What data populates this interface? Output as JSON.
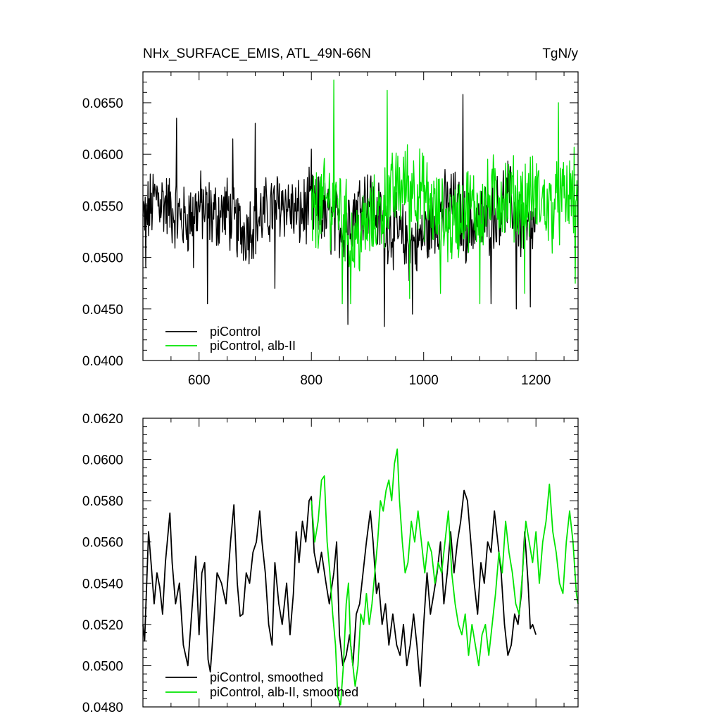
{
  "title": "NHx_SURFACE_EMIS, ATL_49N-66N",
  "units": "TgN/y",
  "colors": {
    "piControl": "#000000",
    "alb_II": "#00e400"
  },
  "chart_data": [
    {
      "type": "line",
      "xlim": [
        500,
        1275
      ],
      "ylim": [
        0.04,
        0.068
      ],
      "x_ticks": [
        600,
        800,
        1000,
        1200
      ],
      "x_tick_labels": [
        "600",
        "800",
        "1000",
        "1200"
      ],
      "y_ticks": [
        0.04,
        0.045,
        0.05,
        0.055,
        0.06,
        0.065
      ],
      "y_tick_labels": [
        "0.0400",
        "0.0450",
        "0.0500",
        "0.0550",
        "0.0600",
        "0.0650"
      ],
      "legend_position": "lower-left",
      "series": [
        {
          "name": "piControl",
          "color": "#000000",
          "x_start": 500,
          "x_end": 1200,
          "step": 25,
          "values": [
            0.0535,
            0.056,
            0.0545,
            0.0535,
            0.055,
            0.054,
            0.0545,
            0.0525,
            0.0535,
            0.0545,
            0.0555,
            0.054,
            0.055,
            0.054,
            0.053,
            0.0545,
            0.056,
            0.0535,
            0.0525,
            0.051,
            0.052,
            0.054,
            0.0555,
            0.053,
            0.0535,
            0.054,
            0.056,
            0.053,
            0.0525
          ],
          "amplitude": 0.003,
          "spikes": [
            [
              505,
              0.049
            ],
            [
              560,
              0.0635
            ],
            [
              590,
              0.049
            ],
            [
              615,
              0.0455
            ],
            [
              660,
              0.0615
            ],
            [
              700,
              0.063
            ],
            [
              735,
              0.047
            ],
            [
              800,
              0.0605
            ],
            [
              865,
              0.0435
            ],
            [
              930,
              0.0433
            ],
            [
              980,
              0.0445
            ],
            [
              1070,
              0.0658
            ],
            [
              1120,
              0.0455
            ],
            [
              1165,
              0.045
            ],
            [
              1190,
              0.0452
            ]
          ]
        },
        {
          "name": "piControl, alb-II",
          "color": "#00e400",
          "x_start": 800,
          "x_end": 1275,
          "step": 25,
          "values": [
            0.054,
            0.0555,
            0.055,
            0.0515,
            0.053,
            0.0545,
            0.0565,
            0.0575,
            0.056,
            0.054,
            0.053,
            0.055,
            0.0545,
            0.056,
            0.056,
            0.0555,
            0.056,
            0.0545,
            0.0555,
            0.0565
          ],
          "amplitude": 0.0035,
          "spikes": [
            [
              840,
              0.0672
            ],
            [
              855,
              0.0455
            ],
            [
              870,
              0.0455
            ],
            [
              935,
              0.0662
            ],
            [
              975,
              0.046
            ],
            [
              1030,
              0.0465
            ],
            [
              1100,
              0.0455
            ],
            [
              1180,
              0.0465
            ],
            [
              1240,
              0.065
            ],
            [
              1270,
              0.0475
            ]
          ]
        }
      ]
    },
    {
      "type": "line",
      "xlim": [
        500,
        1275
      ],
      "ylim": [
        0.048,
        0.062
      ],
      "x_ticks": [
        600,
        800,
        1000,
        1200
      ],
      "x_tick_labels": [],
      "y_ticks": [
        0.048,
        0.05,
        0.052,
        0.054,
        0.056,
        0.058,
        0.06,
        0.062
      ],
      "y_tick_labels": [
        "0.0480",
        "0.0500",
        "0.0520",
        "0.0540",
        "0.0560",
        "0.0580",
        "0.0600",
        "0.0620"
      ],
      "legend_position": "lower-left",
      "series": [
        {
          "name": "piControl, smoothed",
          "color": "#000000",
          "points": [
            [
              500,
              0.052
            ],
            [
              503,
              0.0512
            ],
            [
              510,
              0.0565
            ],
            [
              515,
              0.0548
            ],
            [
              520,
              0.053
            ],
            [
              525,
              0.0545
            ],
            [
              530,
              0.0538
            ],
            [
              535,
              0.0525
            ],
            [
              540,
              0.055
            ],
            [
              548,
              0.0574
            ],
            [
              552,
              0.055
            ],
            [
              558,
              0.053
            ],
            [
              565,
              0.054
            ],
            [
              572,
              0.051
            ],
            [
              580,
              0.05
            ],
            [
              588,
              0.053
            ],
            [
              594,
              0.0553
            ],
            [
              600,
              0.0515
            ],
            [
              605,
              0.0545
            ],
            [
              610,
              0.055
            ],
            [
              616,
              0.0503
            ],
            [
              620,
              0.0497
            ],
            [
              626,
              0.052
            ],
            [
              632,
              0.0545
            ],
            [
              640,
              0.054
            ],
            [
              648,
              0.053
            ],
            [
              656,
              0.056
            ],
            [
              662,
              0.0578
            ],
            [
              668,
              0.054
            ],
            [
              673,
              0.0524
            ],
            [
              678,
              0.0525
            ],
            [
              684,
              0.0545
            ],
            [
              690,
              0.054
            ],
            [
              696,
              0.0555
            ],
            [
              702,
              0.056
            ],
            [
              708,
              0.0575
            ],
            [
              712,
              0.056
            ],
            [
              718,
              0.0545
            ],
            [
              724,
              0.052
            ],
            [
              730,
              0.051
            ],
            [
              735,
              0.055
            ],
            [
              742,
              0.053
            ],
            [
              748,
              0.052
            ],
            [
              756,
              0.054
            ],
            [
              762,
              0.0515
            ],
            [
              768,
              0.0535
            ],
            [
              773,
              0.0565
            ],
            [
              778,
              0.055
            ],
            [
              784,
              0.057
            ],
            [
              790,
              0.056
            ],
            [
              796,
              0.058
            ],
            [
              800,
              0.0582
            ],
            [
              805,
              0.0555
            ],
            [
              812,
              0.0545
            ],
            [
              818,
              0.0555
            ],
            [
              826,
              0.054
            ],
            [
              832,
              0.053
            ],
            [
              840,
              0.0545
            ],
            [
              845,
              0.056
            ],
            [
              850,
              0.0515
            ],
            [
              856,
              0.05
            ],
            [
              862,
              0.0505
            ],
            [
              868,
              0.0515
            ],
            [
              874,
              0.05
            ],
            [
              880,
              0.0525
            ],
            [
              886,
              0.053
            ],
            [
              892,
              0.0545
            ],
            [
              898,
              0.056
            ],
            [
              905,
              0.0575
            ],
            [
              910,
              0.056
            ],
            [
              916,
              0.0535
            ],
            [
              920,
              0.054
            ],
            [
              926,
              0.052
            ],
            [
              932,
              0.053
            ],
            [
              938,
              0.051
            ],
            [
              945,
              0.0525
            ],
            [
              952,
              0.051
            ],
            [
              958,
              0.0505
            ],
            [
              964,
              0.052
            ],
            [
              970,
              0.05
            ],
            [
              976,
              0.051
            ],
            [
              982,
              0.0525
            ],
            [
              988,
              0.051
            ],
            [
              994,
              0.049
            ],
            [
              1000,
              0.052
            ],
            [
              1006,
              0.0545
            ],
            [
              1012,
              0.0525
            ],
            [
              1018,
              0.0535
            ],
            [
              1024,
              0.0545
            ],
            [
              1030,
              0.056
            ],
            [
              1036,
              0.053
            ],
            [
              1042,
              0.0545
            ],
            [
              1048,
              0.0565
            ],
            [
              1054,
              0.0545
            ],
            [
              1060,
              0.056
            ],
            [
              1066,
              0.057
            ],
            [
              1072,
              0.0585
            ],
            [
              1078,
              0.058
            ],
            [
              1084,
              0.056
            ],
            [
              1090,
              0.054
            ],
            [
              1096,
              0.0525
            ],
            [
              1102,
              0.055
            ],
            [
              1108,
              0.054
            ],
            [
              1114,
              0.056
            ],
            [
              1120,
              0.0555
            ],
            [
              1126,
              0.0575
            ],
            [
              1132,
              0.056
            ],
            [
              1138,
              0.0545
            ],
            [
              1144,
              0.052
            ],
            [
              1150,
              0.0505
            ],
            [
              1156,
              0.051
            ],
            [
              1162,
              0.0525
            ],
            [
              1168,
              0.052
            ],
            [
              1174,
              0.0535
            ],
            [
              1180,
              0.0565
            ],
            [
              1186,
              0.054
            ],
            [
              1190,
              0.0518
            ],
            [
              1194,
              0.052
            ],
            [
              1200,
              0.0515
            ]
          ]
        },
        {
          "name": "piControl, alb-II, smoothed",
          "color": "#00e400",
          "points": [
            [
              800,
              0.058
            ],
            [
              806,
              0.056
            ],
            [
              812,
              0.057
            ],
            [
              818,
              0.059
            ],
            [
              823,
              0.0592
            ],
            [
              828,
              0.056
            ],
            [
              833,
              0.0545
            ],
            [
              838,
              0.0525
            ],
            [
              843,
              0.051
            ],
            [
              847,
              0.0485
            ],
            [
              852,
              0.0481
            ],
            [
              857,
              0.05
            ],
            [
              862,
              0.053
            ],
            [
              866,
              0.054
            ],
            [
              870,
              0.051
            ],
            [
              874,
              0.05
            ],
            [
              878,
              0.049
            ],
            [
              883,
              0.05
            ],
            [
              888,
              0.0525
            ],
            [
              893,
              0.052
            ],
            [
              898,
              0.0535
            ],
            [
              903,
              0.052
            ],
            [
              908,
              0.053
            ],
            [
              913,
              0.0545
            ],
            [
              918,
              0.056
            ],
            [
              923,
              0.058
            ],
            [
              928,
              0.0575
            ],
            [
              933,
              0.0585
            ],
            [
              938,
              0.059
            ],
            [
              943,
              0.058
            ],
            [
              948,
              0.0598
            ],
            [
              953,
              0.0605
            ],
            [
              957,
              0.058
            ],
            [
              962,
              0.056
            ],
            [
              967,
              0.0545
            ],
            [
              972,
              0.055
            ],
            [
              978,
              0.057
            ],
            [
              984,
              0.056
            ],
            [
              990,
              0.0575
            ],
            [
              996,
              0.056
            ],
            [
              1002,
              0.0545
            ],
            [
              1008,
              0.056
            ],
            [
              1014,
              0.0555
            ],
            [
              1020,
              0.054
            ],
            [
              1026,
              0.055
            ],
            [
              1032,
              0.0545
            ],
            [
              1038,
              0.056
            ],
            [
              1044,
              0.0575
            ],
            [
              1050,
              0.0545
            ],
            [
              1056,
              0.053
            ],
            [
              1062,
              0.052
            ],
            [
              1068,
              0.0515
            ],
            [
              1074,
              0.0525
            ],
            [
              1080,
              0.0505
            ],
            [
              1086,
              0.052
            ],
            [
              1092,
              0.051
            ],
            [
              1098,
              0.05
            ],
            [
              1104,
              0.0515
            ],
            [
              1110,
              0.052
            ],
            [
              1116,
              0.0505
            ],
            [
              1122,
              0.052
            ],
            [
              1128,
              0.0535
            ],
            [
              1134,
              0.0555
            ],
            [
              1140,
              0.0545
            ],
            [
              1146,
              0.057
            ],
            [
              1152,
              0.0555
            ],
            [
              1158,
              0.0545
            ],
            [
              1164,
              0.053
            ],
            [
              1170,
              0.0525
            ],
            [
              1176,
              0.0545
            ],
            [
              1182,
              0.057
            ],
            [
              1188,
              0.056
            ],
            [
              1194,
              0.055
            ],
            [
              1200,
              0.0565
            ],
            [
              1206,
              0.054
            ],
            [
              1212,
              0.056
            ],
            [
              1218,
              0.057
            ],
            [
              1224,
              0.0588
            ],
            [
              1230,
              0.0565
            ],
            [
              1236,
              0.0555
            ],
            [
              1242,
              0.054
            ],
            [
              1248,
              0.0535
            ],
            [
              1254,
              0.056
            ],
            [
              1260,
              0.0575
            ],
            [
              1266,
              0.056
            ],
            [
              1272,
              0.0535
            ],
            [
              1275,
              0.053
            ]
          ]
        }
      ]
    }
  ]
}
